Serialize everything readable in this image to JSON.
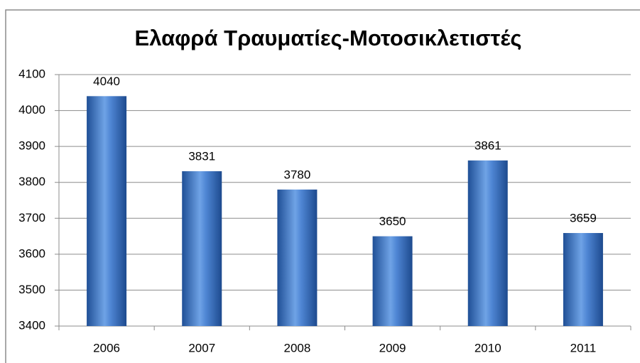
{
  "chart_data": {
    "type": "bar",
    "title": "Ελαφρά Τραυματίες-Μοτοσικλετιστές",
    "categories": [
      "2006",
      "2007",
      "2008",
      "2009",
      "2010",
      "2011"
    ],
    "values": [
      4040,
      3831,
      3780,
      3650,
      3861,
      3659
    ],
    "color": "#3d78c8",
    "ylim": [
      3400,
      4100
    ],
    "yticks": [
      3400,
      3500,
      3600,
      3700,
      3800,
      3900,
      4000,
      4100
    ],
    "grid": true
  }
}
